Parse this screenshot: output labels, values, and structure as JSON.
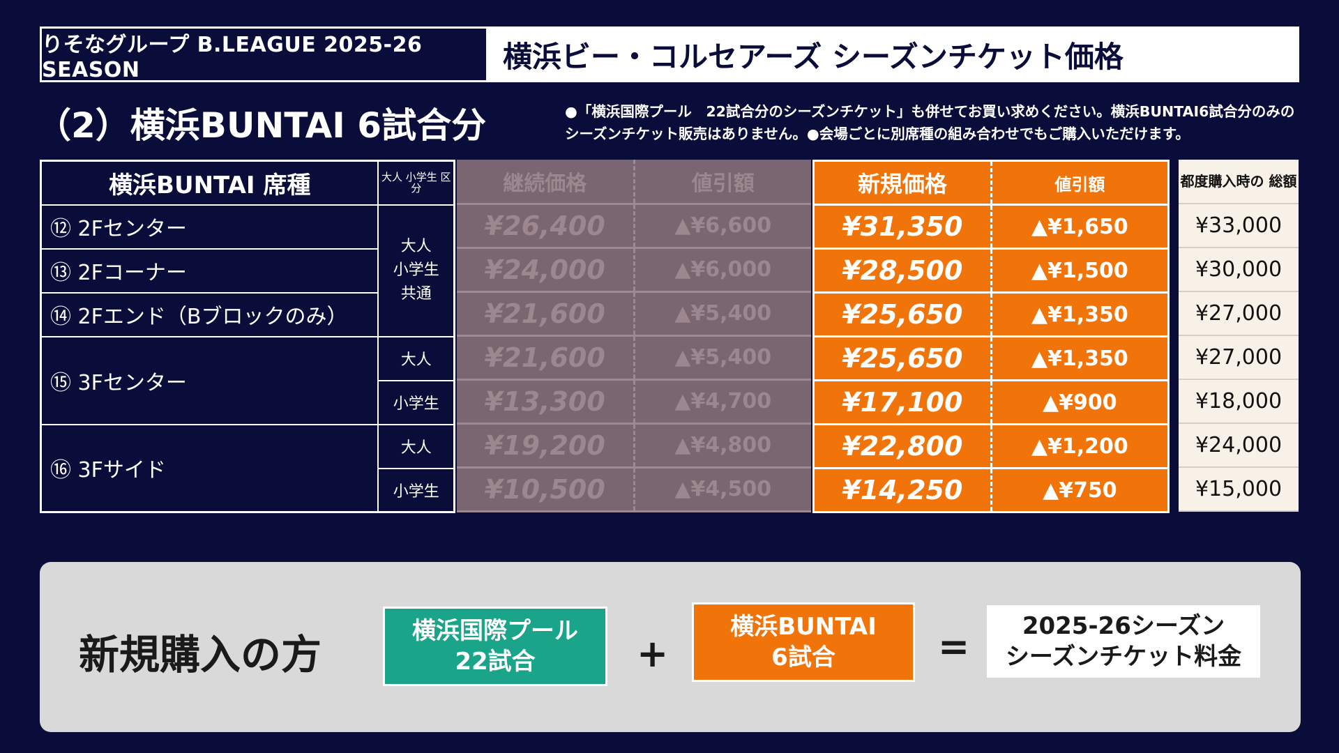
{
  "header": {
    "left_label": "りそなグループ B.LEAGUE 2025-26 SEASON",
    "title": "横浜ビー・コルセアーズ シーズンチケット価格"
  },
  "subtitle": "（2）横浜BUNTAI 6試合分",
  "note": "●「横浜国際プール　22試合分のシーズンチケット」も併せてお買い求めください。横浜BUNTAI6試合分のみのシーズンチケット販売はありません。●会場ごとに別席種の組み合わせでもご購入いただけます。",
  "table": {
    "headers": {
      "seat": "横浜BUNTAI 席種",
      "category": "大人 小学生 区分",
      "continue_price": "継続価格",
      "continue_discount": "値引額",
      "new_price": "新規価格",
      "new_discount": "値引額",
      "total": "都度購入時の 総額"
    },
    "seats": [
      {
        "name": "⑫ 2Fセンター"
      },
      {
        "name": "⑬ 2Fコーナー"
      },
      {
        "name": "⑭ 2Fエンド（Bブロックのみ）"
      },
      {
        "name": "⑮ 3Fセンター"
      },
      {
        "name": "⑯ 3Fサイド"
      }
    ],
    "categories": {
      "shared_line1": "大人",
      "shared_line2": "小学生",
      "shared_line3": "共通",
      "adult": "大人",
      "child": "小学生"
    },
    "rows": [
      {
        "cont": "¥26,400",
        "cont_disc": "▲¥6,600",
        "new": "¥31,350",
        "new_disc": "▲¥1,650",
        "total": "¥33,000"
      },
      {
        "cont": "¥24,000",
        "cont_disc": "▲¥6,000",
        "new": "¥28,500",
        "new_disc": "▲¥1,500",
        "total": "¥30,000"
      },
      {
        "cont": "¥21,600",
        "cont_disc": "▲¥5,400",
        "new": "¥25,650",
        "new_disc": "▲¥1,350",
        "total": "¥27,000"
      },
      {
        "cont": "¥21,600",
        "cont_disc": "▲¥5,400",
        "new": "¥25,650",
        "new_disc": "▲¥1,350",
        "total": "¥27,000"
      },
      {
        "cont": "¥13,300",
        "cont_disc": "▲¥4,700",
        "new": "¥17,100",
        "new_disc": "▲¥900",
        "total": "¥18,000"
      },
      {
        "cont": "¥19,200",
        "cont_disc": "▲¥4,800",
        "new": "¥22,800",
        "new_disc": "▲¥1,200",
        "total": "¥24,000"
      },
      {
        "cont": "¥10,500",
        "cont_disc": "▲¥4,500",
        "new": "¥14,250",
        "new_disc": "▲¥750",
        "total": "¥15,000"
      }
    ]
  },
  "panel": {
    "label": "新規購入の方",
    "pool_line1": "横浜国際プール",
    "pool_line2": "22試合",
    "plus": "+",
    "buntai_line1": "横浜BUNTAI",
    "buntai_line2": "6試合",
    "equals": "=",
    "result_line1": "2025-26シーズン",
    "result_line2": "シーズンチケット料金"
  },
  "colors": {
    "background": "#0a0d3a",
    "continue_bg": "#7a6670",
    "new_bg": "#f07409",
    "total_bg": "#f8f1e7",
    "pool_bg": "#1aa58a",
    "panel_bg": "#d9d9d9"
  }
}
